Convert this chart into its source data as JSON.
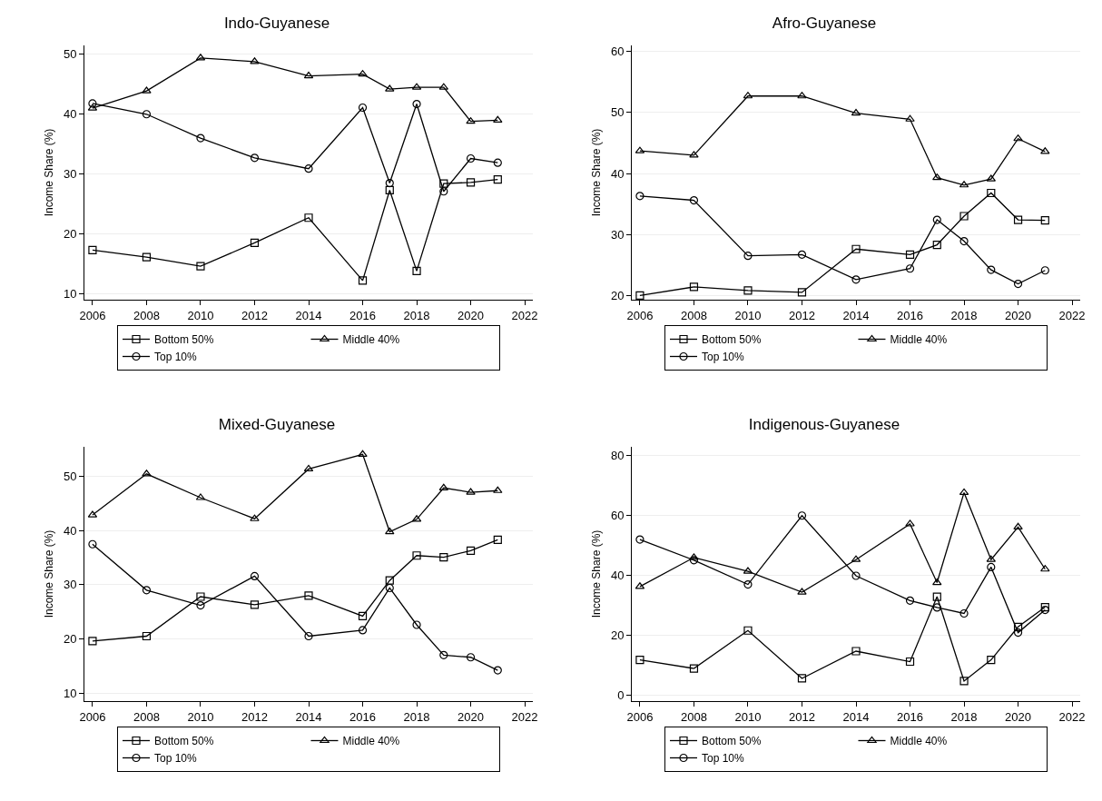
{
  "chart_data": [
    {
      "type": "line",
      "title": "Indo-Guyanese",
      "ylabel": "Income Share (%)",
      "x": [
        2006,
        2008,
        2010,
        2012,
        2014,
        2016,
        2017,
        2018,
        2019,
        2020,
        2021
      ],
      "xlim": [
        2005.7,
        2022.3
      ],
      "xticks": [
        2006,
        2008,
        2010,
        2012,
        2014,
        2016,
        2018,
        2020,
        2022
      ],
      "ylim": [
        9,
        51.5
      ],
      "yticks": [
        10,
        20,
        30,
        40,
        50
      ],
      "grid": "y",
      "legend": "bottom",
      "line_style": "solid",
      "series": [
        {
          "name": "Bottom 50%",
          "color": "#000000",
          "marker": "square",
          "values": [
            17.3,
            16.1,
            14.6,
            18.5,
            22.7,
            12.2,
            27.3,
            13.8,
            28.4,
            28.6,
            29.1
          ]
        },
        {
          "name": "Middle 40%",
          "color": "#000000",
          "marker": "triangle",
          "values": [
            41.0,
            43.9,
            49.4,
            48.8,
            46.4,
            46.7,
            44.2,
            44.5,
            44.5,
            38.8,
            39.0
          ]
        },
        {
          "name": "Top 10%",
          "color": "#000000",
          "marker": "circle",
          "values": [
            41.8,
            40.0,
            36.0,
            32.7,
            30.9,
            41.1,
            28.5,
            41.7,
            27.1,
            32.6,
            31.9
          ]
        }
      ]
    },
    {
      "type": "line",
      "title": "Afro-Guyanese",
      "ylabel": "Income Share (%)",
      "x": [
        2006,
        2008,
        2010,
        2012,
        2014,
        2016,
        2017,
        2018,
        2019,
        2020,
        2021
      ],
      "xlim": [
        2005.7,
        2022.3
      ],
      "xticks": [
        2006,
        2008,
        2010,
        2012,
        2014,
        2016,
        2018,
        2020,
        2022
      ],
      "ylim": [
        19.3,
        61
      ],
      "yticks": [
        20,
        30,
        40,
        50,
        60
      ],
      "grid": "y",
      "legend": "bottom",
      "line_style": "solid",
      "series": [
        {
          "name": "Bottom 50%",
          "color": "#000000",
          "marker": "square",
          "values": [
            20.0,
            21.4,
            20.8,
            20.5,
            27.6,
            26.7,
            28.3,
            33.0,
            36.8,
            32.4,
            32.3
          ]
        },
        {
          "name": "Middle 40%",
          "color": "#000000",
          "marker": "triangle",
          "values": [
            43.7,
            43.0,
            52.7,
            52.7,
            49.9,
            48.9,
            39.3,
            38.1,
            39.1,
            45.7,
            43.6
          ]
        },
        {
          "name": "Top 10%",
          "color": "#000000",
          "marker": "circle",
          "values": [
            36.3,
            35.6,
            26.5,
            26.7,
            22.6,
            24.4,
            32.4,
            28.9,
            24.2,
            21.9,
            24.1
          ]
        }
      ]
    },
    {
      "type": "line",
      "title": "Mixed-Guyanese",
      "ylabel": "Income Share (%)",
      "x": [
        2006,
        2008,
        2010,
        2012,
        2014,
        2016,
        2017,
        2018,
        2019,
        2020,
        2021
      ],
      "xlim": [
        2005.7,
        2022.3
      ],
      "xticks": [
        2006,
        2008,
        2010,
        2012,
        2014,
        2016,
        2018,
        2020,
        2022
      ],
      "ylim": [
        8.5,
        55.5
      ],
      "yticks": [
        10,
        20,
        30,
        40,
        50
      ],
      "grid": "y",
      "legend": "bottom",
      "line_style": "solid",
      "series": [
        {
          "name": "Bottom 50%",
          "color": "#000000",
          "marker": "square",
          "values": [
            19.6,
            20.5,
            27.8,
            26.3,
            28.0,
            24.2,
            30.8,
            35.4,
            35.1,
            36.3,
            38.3
          ]
        },
        {
          "name": "Middle 40%",
          "color": "#000000",
          "marker": "triangle",
          "values": [
            42.9,
            50.5,
            46.1,
            42.2,
            51.4,
            54.1,
            39.8,
            42.1,
            47.9,
            47.1,
            47.4
          ]
        },
        {
          "name": "Top 10%",
          "color": "#000000",
          "marker": "circle",
          "values": [
            37.5,
            29.0,
            26.2,
            31.6,
            20.5,
            21.6,
            29.4,
            22.6,
            17.0,
            16.6,
            14.2
          ]
        }
      ]
    },
    {
      "type": "line",
      "title": "Indigenous-Guyanese",
      "ylabel": "Income Share (%)",
      "x": [
        2006,
        2008,
        2010,
        2012,
        2014,
        2016,
        2017,
        2018,
        2019,
        2020,
        2021
      ],
      "xlim": [
        2005.7,
        2022.3
      ],
      "xticks": [
        2006,
        2008,
        2010,
        2012,
        2014,
        2016,
        2018,
        2020,
        2022
      ],
      "ylim": [
        -2,
        83
      ],
      "yticks": [
        0,
        20,
        40,
        60,
        80
      ],
      "grid": "y",
      "legend": "bottom",
      "line_style": "solid",
      "series": [
        {
          "name": "Bottom 50%",
          "color": "#000000",
          "marker": "square",
          "values": [
            11.8,
            8.9,
            21.6,
            5.6,
            14.7,
            11.2,
            32.9,
            4.7,
            11.8,
            22.8,
            29.4
          ]
        },
        {
          "name": "Middle 40%",
          "color": "#000000",
          "marker": "triangle",
          "values": [
            36.3,
            46.0,
            41.4,
            34.4,
            45.3,
            57.2,
            37.6,
            67.7,
            45.3,
            56.2,
            42.1
          ]
        },
        {
          "name": "Top 10%",
          "color": "#000000",
          "marker": "circle",
          "values": [
            52.0,
            45.1,
            37.0,
            60.0,
            39.9,
            31.6,
            29.3,
            27.3,
            42.8,
            20.9,
            28.5
          ]
        }
      ]
    }
  ]
}
